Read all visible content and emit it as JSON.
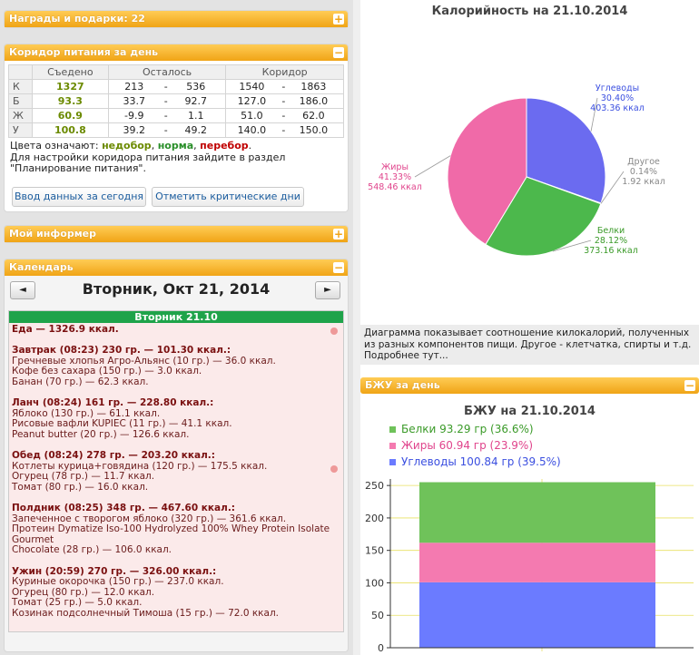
{
  "awards": {
    "title": "Награды и подарки: 22",
    "btn": "+"
  },
  "corridor": {
    "title": "Коридор питания за день",
    "btn": "−",
    "headers": [
      "",
      "Съедено",
      "Осталось",
      "Коридор"
    ],
    "rows": [
      {
        "label": "К",
        "eaten": "1327",
        "left_a": "213",
        "left_b": "536",
        "cor_a": "1540",
        "cor_b": "1863",
        "red": false
      },
      {
        "label": "Б",
        "eaten": "93.3",
        "left_a": "33.7",
        "left_b": "92.7",
        "cor_a": "127.0",
        "cor_b": "186.0",
        "red": false
      },
      {
        "label": "Ж",
        "eaten": "60.9",
        "left_a": "-9.9",
        "left_b": "1.1",
        "cor_a": "51.0",
        "cor_b": "62.0",
        "red": false
      },
      {
        "label": "У",
        "eaten": "100.8",
        "left_a": "39.2",
        "left_b": "49.2",
        "cor_a": "140.0",
        "cor_b": "150.0",
        "red": false
      }
    ],
    "dash": "-",
    "colors_prefix": "Цвета означают:",
    "c_low": "недобор",
    "c_sep": ",",
    "c_norm": "норма",
    "c_over": "перебор",
    "c_end": ".",
    "note_line1": "Для настройки коридора питания зайдите в раздел",
    "note_line2": "\"Планирование питания\".",
    "btn_today": "Ввод данных за сегодня",
    "btn_critical": "Отметить критические дни"
  },
  "informer": {
    "title": "Мой информер",
    "btn": "+"
  },
  "calendar": {
    "title": "Календарь",
    "btn": "−",
    "prev": "◄",
    "next": "►",
    "date_title": "Вторник, Окт 21, 2014",
    "day_header": "Вторник 21.10",
    "food_total": "Еда — 1326.9 ккал.",
    "meals": [
      {
        "head": "Завтрак (08:23) 230 гр. — 101.30 ккал.:",
        "items": [
          "Гречневые хлопья Агро-Альянс (10 гр.) — 36.0 ккал.",
          "Кофе без сахара (150 гр.) — 3.0 ккал.",
          "Банан (70 гр.) — 62.3 ккал."
        ]
      },
      {
        "head": "Ланч (08:24) 161 гр. — 228.80 ккал.:",
        "items": [
          "Яблоко (130 гр.) — 61.1 ккал.",
          "Рисовые вафли KUPIEC (11 гр.) — 41.1 ккал.",
          "Peanut butter (20 гр.) — 126.6 ккал."
        ]
      },
      {
        "head": "Обед (08:24) 278 гр. — 203.20 ккал.:",
        "items": [
          "Котлеты курица+говядина (120 гр.) — 175.5 ккал.",
          "Огурец (78 гр.) — 11.7 ккал.",
          "Томат (80 гр.) — 16.0 ккал."
        ]
      },
      {
        "head": "Полдник (08:25) 348 гр. — 467.60 ккал.:",
        "items": [
          "Запеченное с творогом яблоко (320 гр.) — 361.6 ккал.",
          "Протеин Dymatize Iso-100 Hydrolyzed 100% Whey Protein Isolate Gourmet",
          "Chocolate (28 гр.) — 106.0 ккал."
        ]
      },
      {
        "head": "Ужин (20:59) 270 гр. — 326.00 ккал.:",
        "items": [
          "Куриные окорочка (150 гр.) — 237.0 ккал.",
          "Огурец (80 гр.) — 12.0 ккал.",
          "Томат (25 гр.) — 5.0 ккал.",
          "Козинак подсолнечный Тимоша (15 гр.) — 72.0 ккал."
        ]
      }
    ]
  },
  "bju_panel": {
    "title": "БЖУ за день",
    "btn": "−"
  },
  "pie_desc": "Диаграмма показывает соотношение килокалорий, полученных из разных компонентов пищи. Другое - клетчатка, спирты и т.д. Подробнее тут...",
  "chart_data": [
    {
      "type": "pie",
      "title": "Калорийность на 21.10.2014",
      "slices": [
        {
          "name": "Углеводы",
          "percent": "30.40%",
          "kcal": "403.36 ккал",
          "value": 30.4,
          "color": "#6b6bf0"
        },
        {
          "name": "Другое",
          "percent": "0.14%",
          "kcal": "1.92 ккал",
          "value": 0.14,
          "color": "#9a9a9a"
        },
        {
          "name": "Белки",
          "percent": "28.12%",
          "kcal": "373.16 ккал",
          "value": 28.12,
          "color": "#4cb84c"
        },
        {
          "name": "Жиры",
          "percent": "41.33%",
          "kcal": "548.46 ккал",
          "value": 41.33,
          "color": "#f06aa8"
        }
      ]
    },
    {
      "type": "bar",
      "title": "БЖУ на 21.10.2014",
      "categories": [
        ""
      ],
      "series": [
        {
          "name": "Углеводы",
          "label": "Углеводы 100.84 гр (39.5%)",
          "values": [
            100.84
          ],
          "color": "#6b7bff"
        },
        {
          "name": "Жиры",
          "label": "Жиры 60.94 гр (23.9%)",
          "values": [
            60.94
          ],
          "color": "#f47ab0"
        },
        {
          "name": "Белки",
          "label": "Белки 93.29 гр (36.6%)",
          "values": [
            93.29
          ],
          "color": "#6fc25a"
        }
      ],
      "legend_order": [
        2,
        1,
        0
      ],
      "ylim": [
        0,
        260
      ],
      "yticks": [
        "0",
        "50",
        "100",
        "150",
        "200",
        "250"
      ]
    }
  ]
}
